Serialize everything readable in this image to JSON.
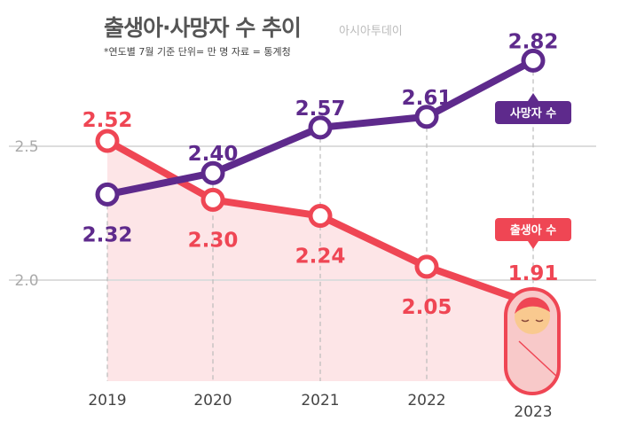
{
  "chart_data": {
    "type": "line",
    "title": "출생아·사망자 수 추이",
    "source_brand": "아시아투데이",
    "subtitle": "*연도별 7월 기준   단위= 만 명  자료 = 통계청",
    "categories": [
      "2019",
      "2020",
      "2021",
      "2022",
      "2023"
    ],
    "series": [
      {
        "name": "사망자 수",
        "values": [
          2.32,
          2.4,
          2.57,
          2.61,
          2.82
        ],
        "color": "#5e2a8c"
      },
      {
        "name": "출생아 수",
        "values": [
          2.52,
          2.3,
          2.24,
          2.05,
          1.91
        ],
        "color": "#ef4654"
      }
    ],
    "yticks": [
      "2.0",
      "2.5"
    ],
    "ylim": [
      1.62,
      2.98
    ],
    "grid": true,
    "fill_color": "#fde5e7"
  }
}
